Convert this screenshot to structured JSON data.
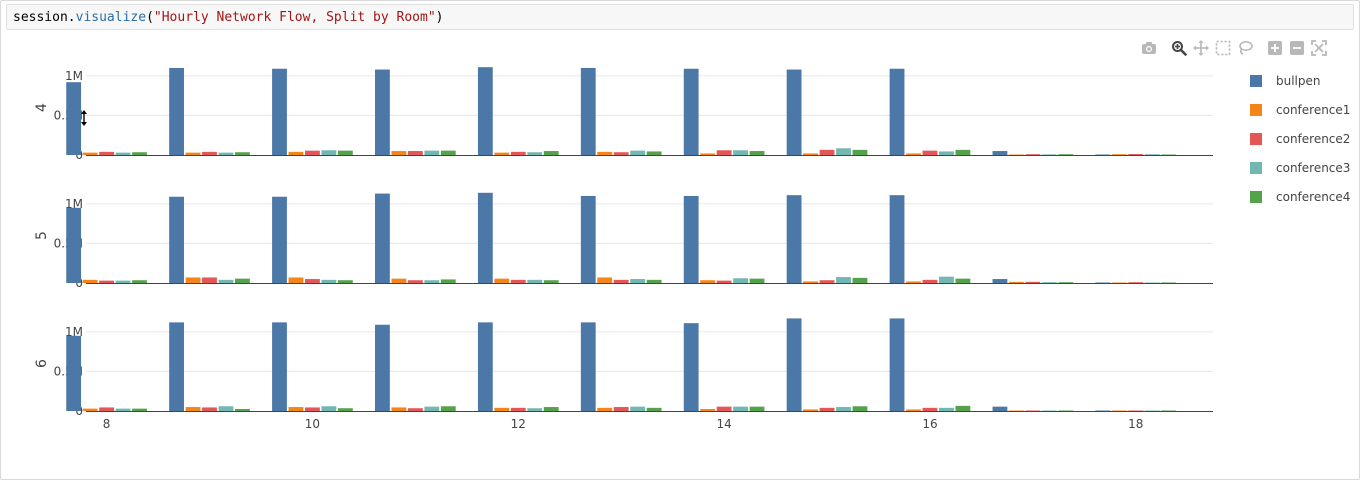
{
  "code_cell": {
    "object": "session",
    "method": "visualize",
    "argument": "\"Hourly Network Flow, Split by Room\""
  },
  "modebar": {
    "icons": [
      "camera-icon",
      "zoom-icon",
      "pan-icon",
      "box-select-icon",
      "lasso-icon",
      "zoom-in-icon",
      "zoom-out-icon",
      "autoscale-icon"
    ]
  },
  "chart_data": {
    "type": "bar",
    "layout": "faceted-rows",
    "facets": [
      "4",
      "5",
      "6"
    ],
    "x": [
      8,
      9,
      10,
      11,
      12,
      13,
      14,
      15,
      16,
      17,
      18
    ],
    "x_ticks": [
      8,
      10,
      12,
      14,
      16,
      18
    ],
    "y_ticks": [
      0,
      500000,
      1000000
    ],
    "y_tick_labels": [
      "0",
      "0.5M",
      "1M"
    ],
    "ylim": [
      0,
      1150000
    ],
    "grid": true,
    "legend_position": "right",
    "series": [
      {
        "name": "bullpen",
        "color": "#4c78a8"
      },
      {
        "name": "conference1",
        "color": "#f58518"
      },
      {
        "name": "conference2",
        "color": "#e45756"
      },
      {
        "name": "conference3",
        "color": "#72b7b2"
      },
      {
        "name": "conference4",
        "color": "#54a24b"
      }
    ],
    "values": {
      "4": [
        [
          920000,
          1100000,
          1090000,
          1080000,
          1110000,
          1100000,
          1090000,
          1080000,
          1090000,
          50000,
          2000
        ],
        [
          30000,
          30000,
          40000,
          50000,
          30000,
          40000,
          20000,
          20000,
          20000,
          5000,
          10000
        ],
        [
          40000,
          40000,
          55000,
          50000,
          40000,
          35000,
          60000,
          65000,
          55000,
          10000,
          12000
        ],
        [
          30000,
          30000,
          60000,
          55000,
          35000,
          55000,
          60000,
          85000,
          45000,
          8000,
          10000
        ],
        [
          35000,
          35000,
          55000,
          55000,
          50000,
          45000,
          50000,
          65000,
          65000,
          10000,
          5000
        ]
      ],
      "5": [
        [
          950000,
          1090000,
          1090000,
          1130000,
          1140000,
          1100000,
          1100000,
          1110000,
          1110000,
          50000,
          2000
        ],
        [
          40000,
          70000,
          70000,
          55000,
          55000,
          70000,
          35000,
          20000,
          20000,
          15000,
          5000
        ],
        [
          30000,
          70000,
          50000,
          35000,
          40000,
          40000,
          30000,
          35000,
          40000,
          15000,
          10000
        ],
        [
          30000,
          40000,
          40000,
          35000,
          40000,
          50000,
          60000,
          75000,
          80000,
          10000,
          5000
        ],
        [
          35000,
          55000,
          35000,
          45000,
          35000,
          40000,
          55000,
          65000,
          55000,
          10000,
          5000
        ]
      ],
      "6": [
        [
          950000,
          1120000,
          1120000,
          1090000,
          1120000,
          1120000,
          1110000,
          1170000,
          1170000,
          55000,
          2000
        ],
        [
          30000,
          50000,
          50000,
          45000,
          40000,
          40000,
          25000,
          20000,
          20000,
          5000,
          3000
        ],
        [
          45000,
          45000,
          45000,
          35000,
          40000,
          50000,
          55000,
          40000,
          40000,
          5000,
          3000
        ],
        [
          30000,
          60000,
          60000,
          55000,
          35000,
          55000,
          55000,
          50000,
          40000,
          5000,
          3000
        ],
        [
          30000,
          25000,
          35000,
          60000,
          50000,
          40000,
          55000,
          60000,
          65000,
          5000,
          3000
        ]
      ]
    }
  }
}
